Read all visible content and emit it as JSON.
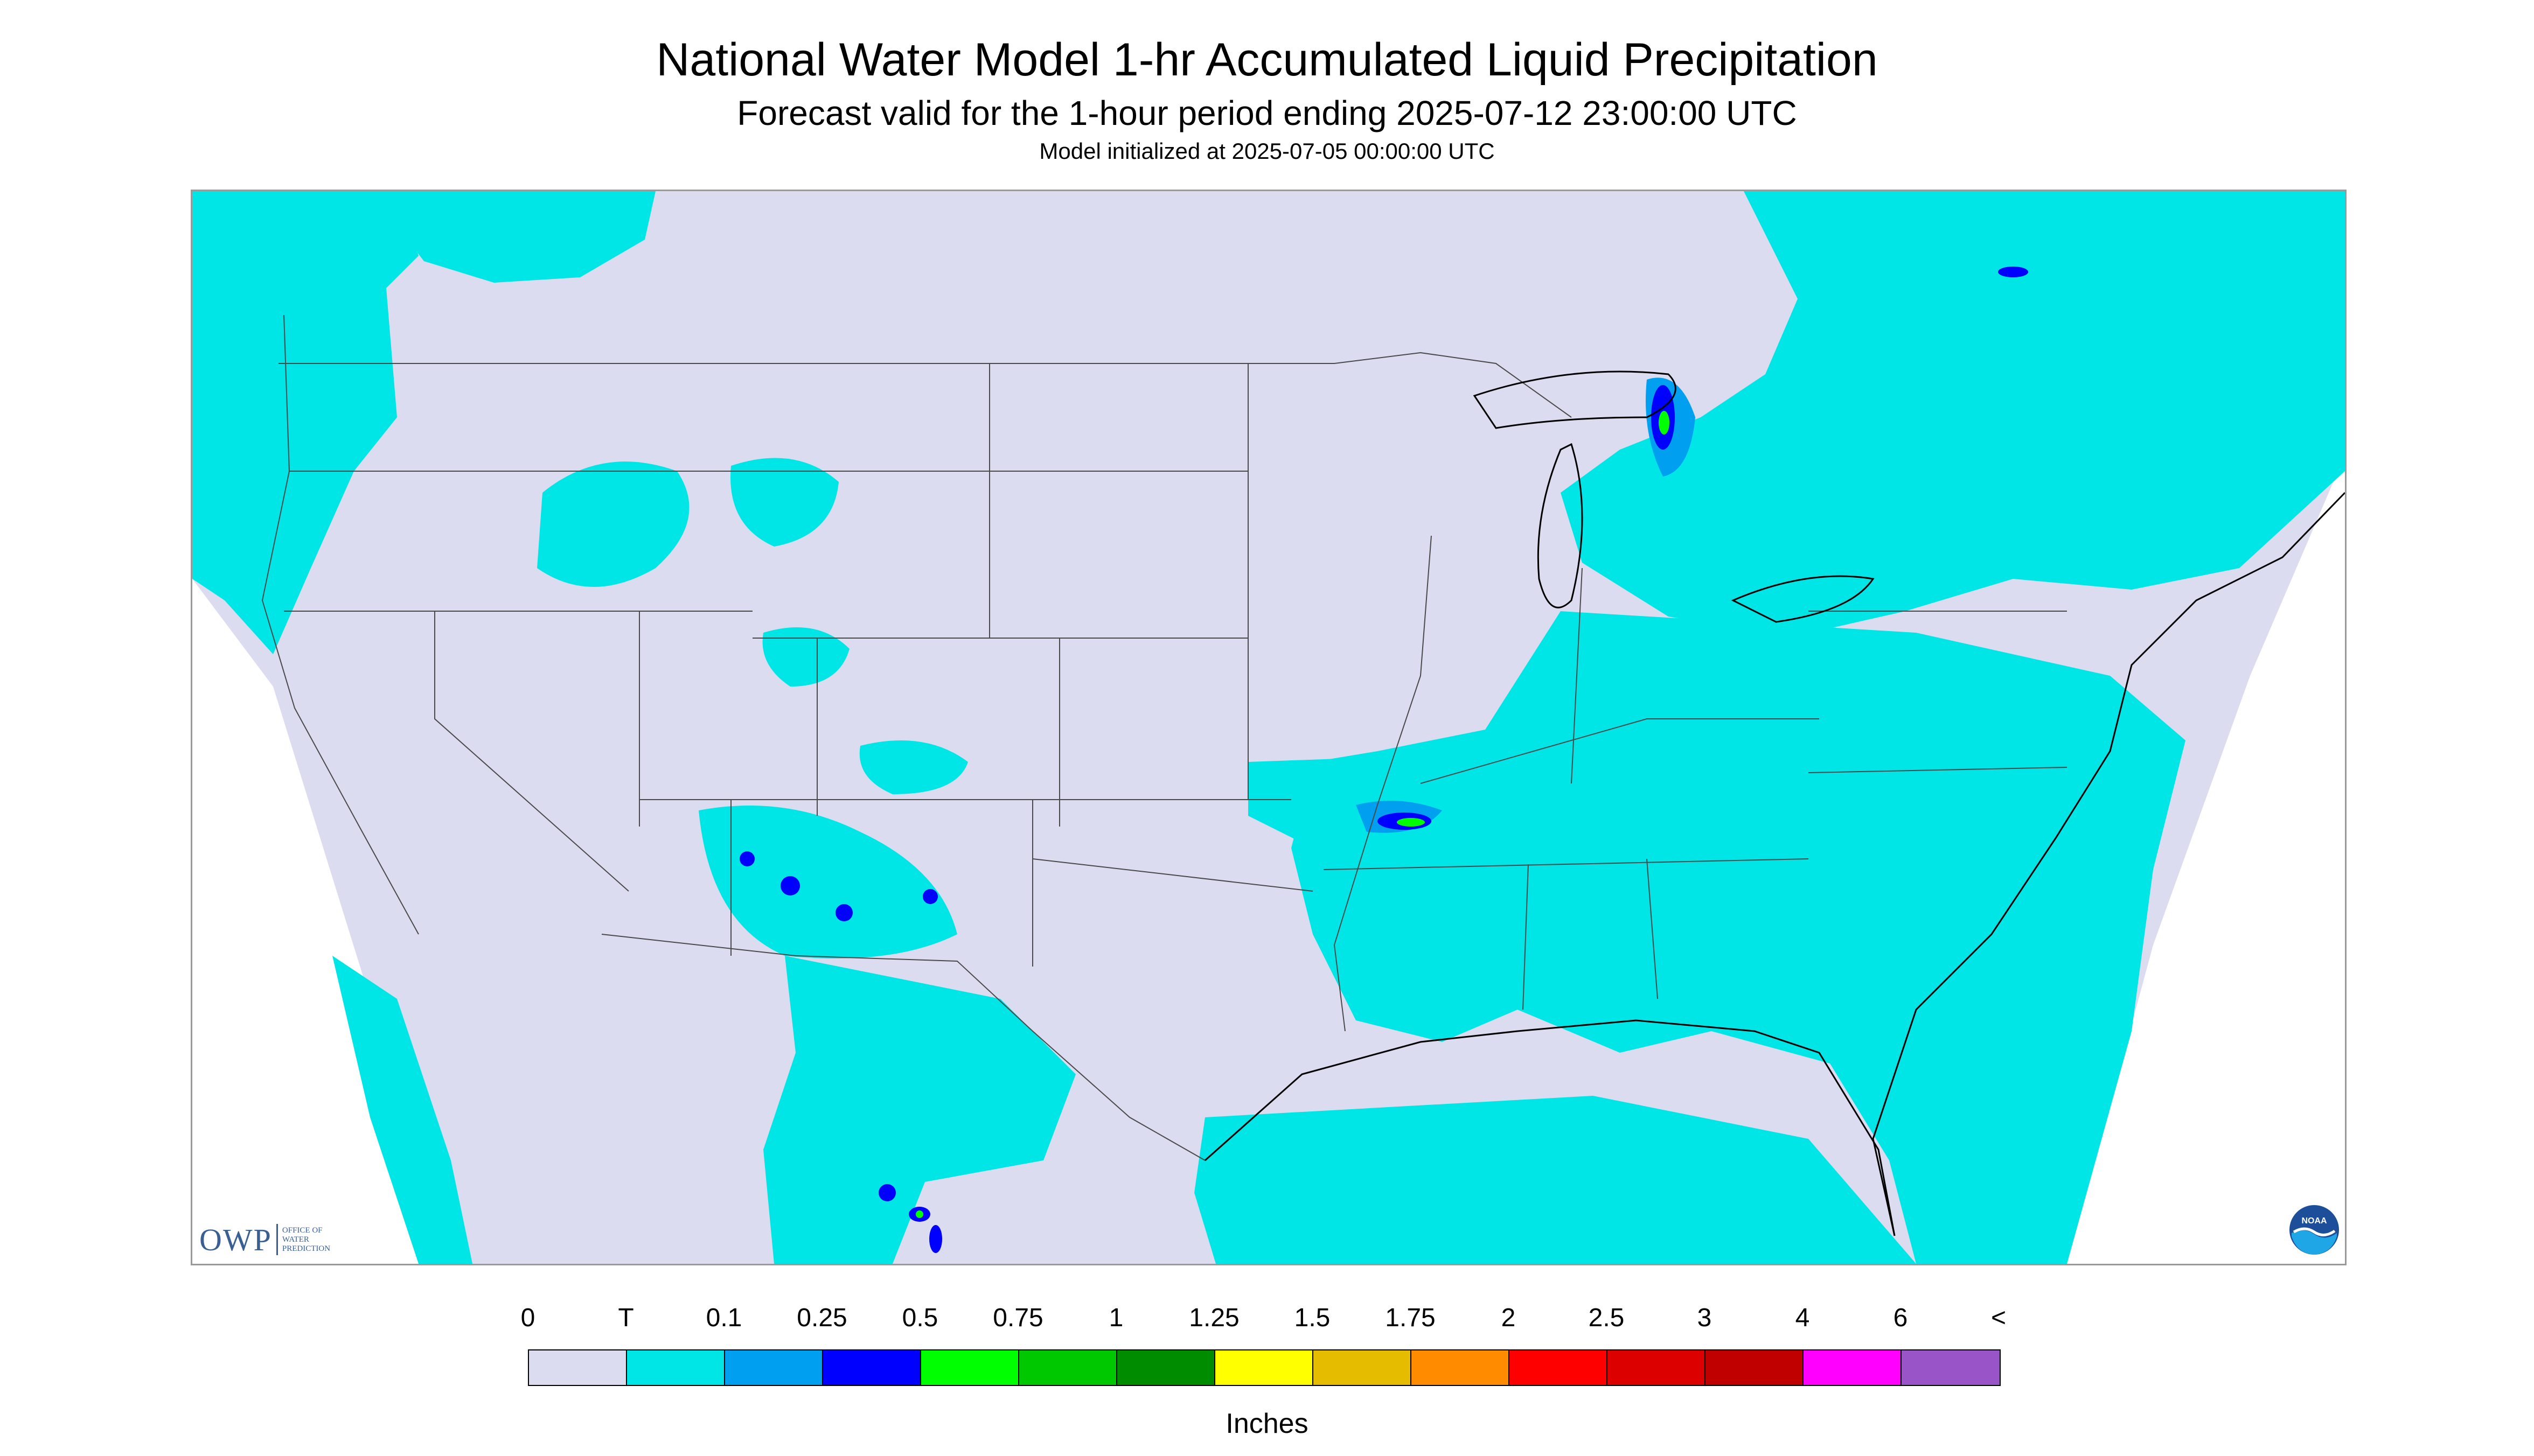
{
  "header": {
    "title": "National Water Model 1-hr Accumulated Liquid Precipitation",
    "subtitle": "Forecast valid for the 1-hour period ending 2025-07-12 23:00:00 UTC",
    "init": "Model initialized at 2025-07-05 00:00:00 UTC"
  },
  "map": {
    "background_color": "#dcdcf0",
    "border_color": "#000000",
    "light_precip_color": "#00e5e5"
  },
  "logos": {
    "owp_letters": "OWP",
    "owp_text": [
      "OFFICE OF",
      "WATER",
      "PREDICTION"
    ],
    "noaa_text": "NOAA",
    "owp_icon": "owp-logo",
    "noaa_icon": "noaa-logo"
  },
  "legend": {
    "labels": [
      "0",
      "T",
      "0.1",
      "0.25",
      "0.5",
      "0.75",
      "1",
      "1.25",
      "1.5",
      "1.75",
      "2",
      "2.5",
      "3",
      "4",
      "6",
      "<"
    ],
    "colors": [
      "#dcdcf0",
      "#00e5e5",
      "#009fef",
      "#0000ff",
      "#00ff00",
      "#00c800",
      "#008c00",
      "#ffff00",
      "#e6bc00",
      "#ff8c00",
      "#ff0000",
      "#dc0000",
      "#c00000",
      "#ff00ff",
      "#9955c8"
    ],
    "units": "Inches"
  }
}
